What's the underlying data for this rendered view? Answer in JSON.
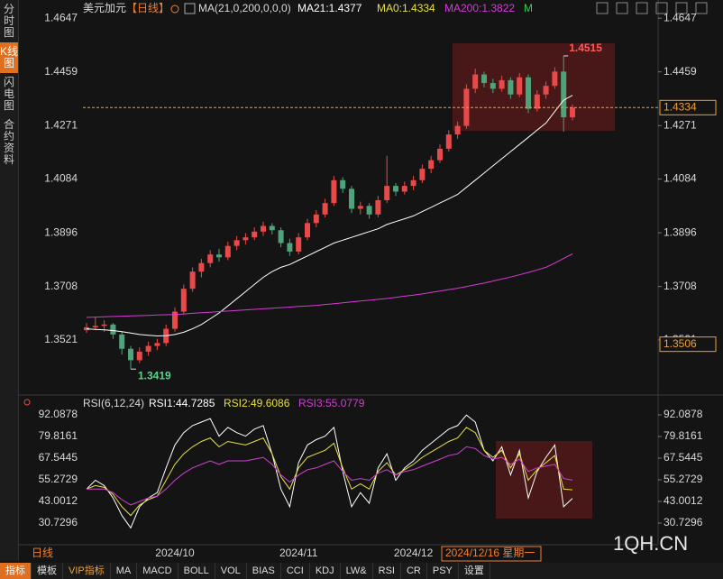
{
  "sidebar": [
    "分时图",
    "K线图",
    "闪电图",
    "合约资料"
  ],
  "period_label": "日线",
  "date_label": "2024/12/16 星期一",
  "watermark": "1QH.CN",
  "tabs": [
    "指标",
    "模板",
    "VIP指标",
    "MA",
    "MACD",
    "BOLL",
    "VOL",
    "BIAS",
    "CCI",
    "KDJ",
    "LW&",
    "RSI",
    "CR",
    "PSY",
    "设置"
  ],
  "chart_data": [
    {
      "type": "candlestick",
      "title": "美元加元",
      "period": "【日线】",
      "indicator": "MA(21,0,200,0,0,0)",
      "ma0_label": "MA0:1.4334",
      "ma0_color": "#e8e040",
      "extra_label": "M",
      "extra_color": "#3cc85a",
      "up_color": "#e84a4a",
      "down_color": "#4fa37a",
      "last_color": "#f0a030",
      "categories": [
        null,
        null,
        null,
        null,
        null,
        null,
        null,
        null,
        null,
        null,
        "2024/10",
        null,
        null,
        null,
        null,
        null,
        null,
        null,
        null,
        null,
        null,
        null,
        null,
        null,
        "2024/11",
        null,
        null,
        null,
        null,
        null,
        null,
        null,
        null,
        null,
        null,
        null,
        null,
        "2024/12",
        null,
        null,
        null,
        null,
        null,
        null,
        null,
        null,
        null,
        null,
        null,
        null,
        null,
        null,
        null,
        null,
        null,
        null
      ],
      "ohlc": [
        [
          1.3555,
          1.358,
          1.3545,
          1.3565
        ],
        [
          1.3565,
          1.36,
          1.3555,
          1.357
        ],
        [
          1.357,
          1.359,
          1.355,
          1.3575
        ],
        [
          1.3575,
          1.358,
          1.3525,
          1.354
        ],
        [
          1.354,
          1.355,
          1.347,
          1.349
        ],
        [
          1.349,
          1.35,
          1.3419,
          1.345
        ],
        [
          1.345,
          1.3495,
          1.344,
          1.348
        ],
        [
          1.348,
          1.3515,
          1.3465,
          1.35
        ],
        [
          1.35,
          1.3525,
          1.3485,
          1.351
        ],
        [
          1.351,
          1.3575,
          1.35,
          1.356
        ],
        [
          1.356,
          1.3635,
          1.355,
          1.362
        ],
        [
          1.362,
          1.3715,
          1.361,
          1.37
        ],
        [
          1.37,
          1.3775,
          1.369,
          1.376
        ],
        [
          1.376,
          1.3805,
          1.374,
          1.379
        ],
        [
          1.379,
          1.3835,
          1.3775,
          1.382
        ],
        [
          1.382,
          1.384,
          1.3795,
          1.381
        ],
        [
          1.381,
          1.3865,
          1.38,
          1.385
        ],
        [
          1.385,
          1.3885,
          1.3835,
          1.387
        ],
        [
          1.387,
          1.3895,
          1.3855,
          1.388
        ],
        [
          1.388,
          1.3915,
          1.387,
          1.39
        ],
        [
          1.39,
          1.3935,
          1.3885,
          1.392
        ],
        [
          1.392,
          1.393,
          1.389,
          1.3905
        ],
        [
          1.3905,
          1.3915,
          1.3845,
          1.386
        ],
        [
          1.386,
          1.3875,
          1.3815,
          1.383
        ],
        [
          1.383,
          1.3895,
          1.382,
          1.388
        ],
        [
          1.388,
          1.3945,
          1.387,
          1.393
        ],
        [
          1.393,
          1.3975,
          1.3915,
          1.396
        ],
        [
          1.396,
          1.4015,
          1.395,
          1.4
        ],
        [
          1.4,
          1.4095,
          1.399,
          1.408
        ],
        [
          1.408,
          1.409,
          1.4035,
          1.405
        ],
        [
          1.405,
          1.406,
          1.3965,
          1.398
        ],
        [
          1.398,
          1.4005,
          1.396,
          1.399
        ],
        [
          1.399,
          1.4,
          1.3945,
          1.396
        ],
        [
          1.396,
          1.4025,
          1.395,
          1.401
        ],
        [
          1.401,
          1.4165,
          1.4,
          1.406
        ],
        [
          1.406,
          1.407,
          1.4025,
          1.404
        ],
        [
          1.404,
          1.4075,
          1.403,
          1.406
        ],
        [
          1.406,
          1.4095,
          1.4045,
          1.408
        ],
        [
          1.408,
          1.4135,
          1.407,
          1.412
        ],
        [
          1.412,
          1.4165,
          1.4105,
          1.415
        ],
        [
          1.415,
          1.4205,
          1.414,
          1.419
        ],
        [
          1.419,
          1.4255,
          1.418,
          1.424
        ],
        [
          1.424,
          1.4285,
          1.4225,
          1.427
        ],
        [
          1.427,
          1.4415,
          1.426,
          1.44
        ],
        [
          1.44,
          1.447,
          1.4385,
          1.445
        ],
        [
          1.445,
          1.446,
          1.4405,
          1.442
        ],
        [
          1.442,
          1.4435,
          1.4385,
          1.44
        ],
        [
          1.44,
          1.4445,
          1.439,
          1.443
        ],
        [
          1.443,
          1.444,
          1.4365,
          1.438
        ],
        [
          1.438,
          1.4455,
          1.437,
          1.444
        ],
        [
          1.444,
          1.445,
          1.4315,
          1.433
        ],
        [
          1.433,
          1.4395,
          1.432,
          1.438
        ],
        [
          1.438,
          1.4425,
          1.4365,
          1.441
        ],
        [
          1.441,
          1.4475,
          1.44,
          1.446
        ],
        [
          1.446,
          1.4515,
          1.425,
          1.43
        ],
        [
          1.43,
          1.4345,
          1.429,
          1.4334
        ]
      ],
      "series": [
        {
          "name": "MA21:1.4377",
          "color": "#ffffff",
          "values": [
            1.356,
            1.3558,
            1.3556,
            1.3554,
            1.355,
            1.3545,
            1.354,
            1.3537,
            1.3535,
            1.3536,
            1.354,
            1.3548,
            1.356,
            1.3575,
            1.3595,
            1.3615,
            1.364,
            1.3665,
            1.369,
            1.3715,
            1.374,
            1.376,
            1.3775,
            1.3785,
            1.38,
            1.3815,
            1.383,
            1.3845,
            1.386,
            1.387,
            1.388,
            1.389,
            1.39,
            1.391,
            1.3925,
            1.3935,
            1.3945,
            1.3955,
            1.397,
            1.3985,
            1.4,
            1.4015,
            1.403,
            1.4055,
            1.408,
            1.4105,
            1.413,
            1.4155,
            1.418,
            1.4205,
            1.423,
            1.4255,
            1.428,
            1.432,
            1.436,
            1.4377
          ]
        },
        {
          "name": "MA200:1.3822",
          "color": "#d83ad8",
          "values": [
            1.36,
            1.3601,
            1.3602,
            1.3603,
            1.3604,
            1.3605,
            1.3606,
            1.3607,
            1.3608,
            1.3609,
            1.361,
            1.3612,
            1.3614,
            1.3616,
            1.3618,
            1.362,
            1.3622,
            1.3624,
            1.3626,
            1.3628,
            1.363,
            1.3632,
            1.3634,
            1.3636,
            1.3638,
            1.364,
            1.3642,
            1.3645,
            1.3648,
            1.3651,
            1.3654,
            1.3657,
            1.366,
            1.3663,
            1.3666,
            1.367,
            1.3674,
            1.3678,
            1.3682,
            1.3687,
            1.3692,
            1.3697,
            1.3702,
            1.3708,
            1.3714,
            1.372,
            1.3727,
            1.3734,
            1.3741,
            1.3749,
            1.3757,
            1.3766,
            1.3775,
            1.379,
            1.3806,
            1.3822
          ]
        }
      ],
      "ylim": [
        1.3385,
        1.4679
      ],
      "yticks": [
        1.4647,
        1.4459,
        1.4271,
        1.4084,
        1.3896,
        1.3708,
        1.3521
      ],
      "marker_price": 1.3506
    },
    {
      "type": "line",
      "indicator": "RSI(6,12,24)",
      "series": [
        {
          "name": "RSI1:44.7285",
          "color": "#ffffff",
          "values": [
            50,
            55,
            52,
            45,
            35,
            28,
            40,
            45,
            48,
            62,
            75,
            82,
            86,
            88,
            90,
            80,
            85,
            82,
            80,
            84,
            86,
            70,
            50,
            40,
            65,
            75,
            78,
            80,
            85,
            60,
            40,
            48,
            42,
            62,
            70,
            55,
            62,
            66,
            72,
            76,
            80,
            84,
            86,
            92,
            88,
            72,
            66,
            74,
            58,
            72,
            45,
            60,
            68,
            75,
            40,
            44.7285
          ]
        },
        {
          "name": "RSI2:49.6086",
          "color": "#e8e040",
          "values": [
            50,
            52,
            51,
            47,
            40,
            35,
            41,
            44,
            46,
            55,
            64,
            70,
            74,
            77,
            79,
            74,
            77,
            76,
            75,
            77,
            79,
            70,
            57,
            50,
            62,
            68,
            70,
            72,
            76,
            62,
            50,
            53,
            50,
            60,
            65,
            58,
            61,
            64,
            68,
            71,
            74,
            77,
            79,
            85,
            82,
            72,
            68,
            72,
            62,
            70,
            55,
            61,
            65,
            69,
            50,
            49.6086
          ]
        },
        {
          "name": "RSI3:55.0779",
          "color": "#d040d0",
          "values": [
            50,
            50,
            50,
            48,
            44,
            41,
            43,
            45,
            46,
            50,
            55,
            59,
            62,
            64,
            66,
            64,
            66,
            66,
            66,
            67,
            68,
            64,
            58,
            54,
            58,
            61,
            62,
            64,
            66,
            60,
            55,
            56,
            55,
            59,
            61,
            58,
            60,
            61,
            63,
            65,
            67,
            69,
            70,
            74,
            73,
            69,
            67,
            68,
            64,
            67,
            60,
            62,
            63,
            64,
            56,
            55.0779
          ]
        }
      ],
      "ylim": [
        20.5,
        97.2
      ],
      "yticks": [
        92.0878,
        79.8161,
        67.5445,
        55.2729,
        43.0012,
        30.7296
      ]
    }
  ]
}
